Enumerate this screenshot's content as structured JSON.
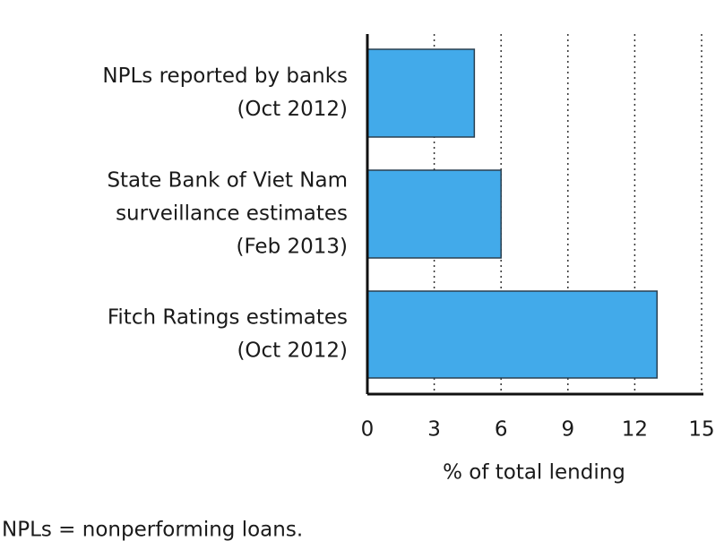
{
  "chart_data": {
    "type": "bar",
    "orientation": "horizontal",
    "categories": [
      [
        "NPLs reported by banks",
        "(Oct 2012)"
      ],
      [
        "State Bank of Viet Nam",
        "surveillance estimates",
        "(Feb 2013)"
      ],
      [
        "Fitch Ratings estimates",
        "(Oct 2012)"
      ]
    ],
    "values": [
      4.8,
      6,
      13
    ],
    "color": "#42aaea",
    "xlim": [
      0,
      15
    ],
    "xticks": [
      0,
      3,
      6,
      9,
      12,
      15
    ],
    "grid": true,
    "xlabel": "% of total lending",
    "note": "NPLs = nonperforming loans."
  }
}
